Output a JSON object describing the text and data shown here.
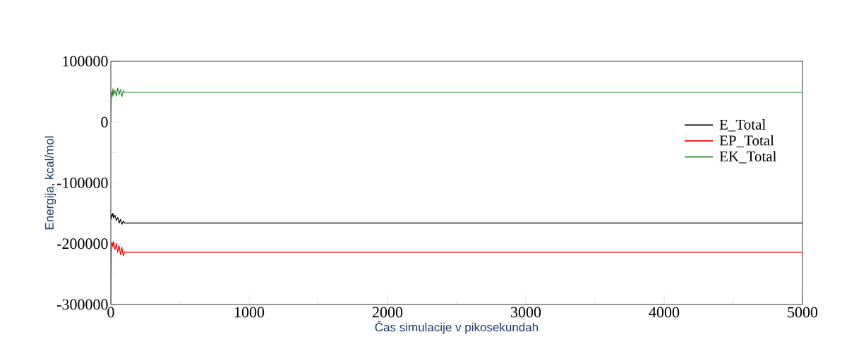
{
  "chart_data": {
    "type": "line",
    "xlabel": "Čas simulacije v pikosekundah",
    "ylabel": "Energija, kcal/mol",
    "xlim": [
      0,
      5000
    ],
    "ylim": [
      -300000,
      100000
    ],
    "xticks": [
      0,
      1000,
      2000,
      3000,
      4000,
      5000
    ],
    "yticks": [
      -300000,
      -200000,
      -100000,
      0,
      100000
    ],
    "legend": "top right",
    "grid": false,
    "marker": "none",
    "line_style": "solid",
    "series": [
      {
        "name": "E_Total",
        "color": "#000000",
        "x": [
          3,
          6,
          10,
          15,
          20,
          30,
          40,
          50,
          60,
          70,
          80,
          90,
          100,
          200,
          500,
          1000,
          1500,
          2000,
          2500,
          3000,
          3500,
          4000,
          4500,
          5000
        ],
        "values": [
          -160000,
          -152000,
          -155000,
          -150000,
          -158000,
          -153000,
          -162000,
          -157000,
          -166000,
          -160000,
          -168000,
          -163000,
          -166000,
          -166000,
          -166000,
          -166000,
          -166000,
          -166000,
          -166000,
          -166000,
          -166000,
          -166000,
          -166000,
          -166000
        ]
      },
      {
        "name": "EP_Total",
        "color": "#ff0000",
        "x": [
          0,
          3,
          6,
          10,
          15,
          20,
          30,
          40,
          50,
          60,
          70,
          80,
          90,
          100,
          200,
          500,
          1000,
          1500,
          2000,
          2500,
          3000,
          3500,
          4000,
          4500,
          5000
        ],
        "values": [
          -300000,
          -220000,
          -200000,
          -198000,
          -205000,
          -196000,
          -210000,
          -200000,
          -214000,
          -203000,
          -218000,
          -206000,
          -220000,
          -214000,
          -214000,
          -214000,
          -214000,
          -214000,
          -214000,
          -214000,
          -214000,
          -214000,
          -214000,
          -214000,
          -214000
        ]
      },
      {
        "name": "EK_Total",
        "color": "#2e8b2e",
        "x": [
          0,
          3,
          6,
          10,
          15,
          20,
          30,
          40,
          50,
          60,
          70,
          80,
          90,
          100,
          200,
          500,
          1000,
          1500,
          2000,
          2500,
          3000,
          3500,
          4000,
          4500,
          5000
        ],
        "values": [
          0,
          30000,
          50000,
          42000,
          55000,
          44000,
          53000,
          43000,
          56000,
          45000,
          54000,
          42000,
          52000,
          49000,
          49000,
          49000,
          49000,
          49000,
          49000,
          49000,
          49000,
          49000,
          49000,
          49000,
          49000
        ]
      }
    ]
  }
}
